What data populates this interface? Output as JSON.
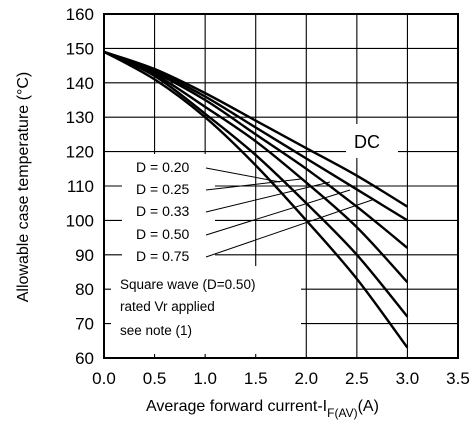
{
  "chart_data": {
    "type": "line",
    "title": "",
    "xlabel_main": "Average forward current-I",
    "xlabel_sub": "F(AV)",
    "xlabel_unit": "(A)",
    "ylabel": "Allowable case temperature (°C)",
    "xlim": [
      0,
      3.5
    ],
    "ylim": [
      60,
      160
    ],
    "x_ticks": [
      "0.0",
      "0.5",
      "1.0",
      "1.5",
      "2.0",
      "2.5",
      "3.0",
      "3.5"
    ],
    "y_ticks": [
      "60",
      "70",
      "80",
      "90",
      "100",
      "110",
      "120",
      "130",
      "140",
      "150",
      "160"
    ],
    "grid": true,
    "x": [
      0,
      0.5,
      1.0,
      1.5,
      2.0,
      2.5,
      3.0
    ],
    "series": [
      {
        "name": "DC",
        "values": [
          149,
          144,
          137,
          129,
          121,
          113,
          104
        ]
      },
      {
        "name": "D = 0.20",
        "values": [
          149,
          143.5,
          136,
          127,
          118,
          109,
          100
        ]
      },
      {
        "name": "D = 0.25",
        "values": [
          149,
          143,
          135,
          125,
          115,
          104,
          92
        ]
      },
      {
        "name": "D = 0.33",
        "values": [
          149,
          142.5,
          133,
          123,
          111,
          98,
          82
        ]
      },
      {
        "name": "D = 0.50",
        "values": [
          149,
          142,
          131,
          119,
          105,
          90,
          72
        ]
      },
      {
        "name": "D = 0.75",
        "values": [
          149,
          141,
          130,
          116,
          100,
          83,
          63
        ]
      }
    ],
    "labels": {
      "dc": "DC",
      "d020": "D = 0.20",
      "d025": "D = 0.25",
      "d033": "D = 0.33",
      "d050": "D = 0.50",
      "d075": "D = 0.75"
    },
    "note": {
      "line1": "Square wave (D=0.50)",
      "line2": "rated Vr applied",
      "line3": "see note (1)"
    }
  }
}
